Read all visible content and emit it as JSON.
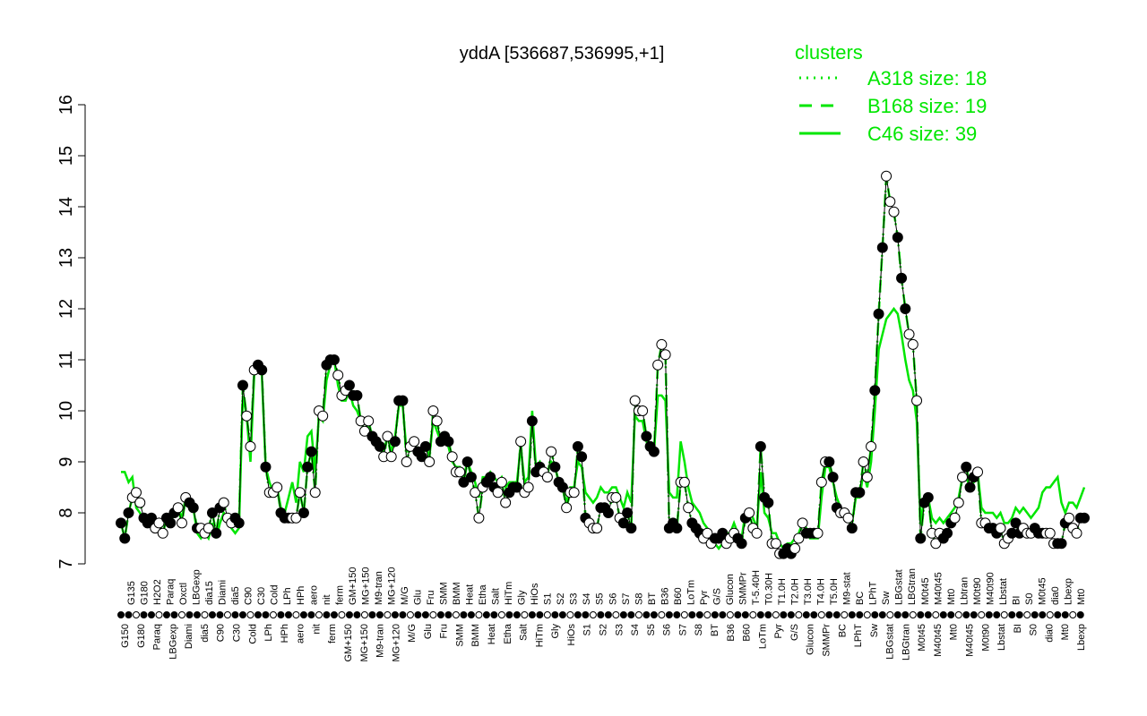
{
  "chart_data": {
    "type": "line",
    "title": "yddA [536687,536995,+1]",
    "xlabel": "",
    "ylabel": "",
    "ylim": [
      7,
      16
    ],
    "yticks": [
      7,
      8,
      9,
      10,
      11,
      12,
      13,
      14,
      15,
      16
    ],
    "x_tick_labels_top": [
      "G135",
      "G180",
      "H2O2",
      "Paraq",
      "Oxctl",
      "LBGexp",
      "dia15",
      "Diami",
      "dia5",
      "C90",
      "C30",
      "Cold",
      "LPh",
      "HPh",
      "aero",
      "nit",
      "ferm",
      "GM+150",
      "MG+150",
      "M9-tran",
      "MG+120",
      "M/G",
      "Glu",
      "Fru",
      "SMM",
      "BMM",
      "Heat",
      "Etha",
      "Salt",
      "HiTm",
      "Gly",
      "HiOs",
      "S1",
      "S2",
      "S3",
      "S4",
      "S5",
      "S6",
      "S7",
      "S8",
      "BT",
      "B36",
      "B60",
      "LoTm",
      "Pyr",
      "G/S",
      "Glucon",
      "SMMPr",
      "T-5.40H",
      "T0.30H",
      "T1.0H",
      "T2.0H",
      "T3.0H",
      "T4.0H",
      "T5.0H",
      "M9-stat",
      "BC",
      "LPhT",
      "Sw",
      "LBGstat",
      "LBGtran",
      "M0t45",
      "M40t45",
      "Mt0",
      "Lbtran",
      "M0t90",
      "M40t90",
      "Lbstat",
      "BI",
      "S0",
      "M0t45",
      "dia0",
      "Lbexp",
      "Mt0"
    ],
    "x_tick_labels_bottom": [
      "G150",
      "G180",
      "Paraq",
      "LBGexp",
      "Diami",
      "dia5",
      "C90",
      "C30",
      "Cold",
      "LPh",
      "HPh",
      "aero",
      "nit",
      "ferm",
      "GM+150",
      "MG+150",
      "M9-tran",
      "MG+120",
      "M/G",
      "Glu",
      "Fru",
      "SMM",
      "BMM",
      "Heat",
      "Etha",
      "Salt",
      "HiTm",
      "Gly",
      "HiOs",
      "S1",
      "S2",
      "S3",
      "S4",
      "S5",
      "S6",
      "S7",
      "S8",
      "BT",
      "B36",
      "B60",
      "LoTm",
      "Pyr",
      "G/S",
      "Glucon",
      "SMMPr",
      "BC",
      "LPhT",
      "Sw",
      "LBGstat",
      "LBGtran",
      "M0t45",
      "M40t45",
      "Mt0",
      "M40t45",
      "M0t90",
      "Lbstat",
      "BI",
      "S0",
      "dia0",
      "Mt0",
      "Lbexp"
    ],
    "series": [
      {
        "name": "A318 size: 18",
        "style": "dotted",
        "color": "#00e600",
        "values": [
          7.8,
          7.5,
          8.0,
          8.3,
          8.4,
          8.2,
          7.9,
          7.8,
          7.9,
          7.7,
          7.8,
          7.6,
          7.9,
          7.8,
          8.0,
          8.1,
          7.8,
          8.3,
          8.2,
          8.1,
          7.7,
          7.7,
          7.6,
          7.7,
          8.0,
          7.6,
          8.1,
          8.2,
          7.9,
          7.8,
          7.9,
          7.8,
          10.5,
          9.9,
          9.3,
          10.8,
          10.9,
          10.8,
          8.9,
          8.4,
          8.4,
          8.5,
          8.0,
          7.9,
          7.9,
          7.9,
          7.9,
          8.4,
          8.0,
          8.9,
          9.2,
          8.4,
          10.0,
          9.9,
          10.9,
          11.0,
          11.0,
          10.7,
          10.3,
          10.4,
          10.5,
          10.3,
          10.3,
          9.8,
          9.6,
          9.8,
          9.5,
          9.4,
          9.3,
          9.1,
          9.5,
          9.1,
          9.4,
          10.2,
          10.2,
          9.0,
          9.3,
          9.4,
          9.2,
          9.1,
          9.3,
          9.0,
          10.0,
          9.8,
          9.4,
          9.5,
          9.4,
          9.1,
          8.8,
          8.8,
          8.6,
          9.0,
          8.7,
          8.4,
          7.9,
          8.5,
          8.6,
          8.7,
          8.5,
          8.4,
          8.6,
          8.2,
          8.4,
          8.5,
          8.5,
          9.4,
          8.4,
          8.5,
          9.8,
          8.8,
          8.9,
          8.8,
          8.7,
          9.2,
          8.9,
          8.6,
          8.5,
          8.1,
          8.4,
          8.4,
          9.3,
          9.1,
          7.9,
          7.8,
          7.7,
          7.7,
          8.1,
          8.1,
          8.0,
          8.3,
          8.3,
          7.9,
          7.8,
          8.0,
          7.7,
          10.2,
          10.0,
          10.0,
          9.5,
          9.3,
          9.2,
          10.9,
          11.3,
          11.1,
          7.7,
          7.8,
          7.7,
          8.6,
          8.6,
          8.1,
          7.8,
          7.7,
          7.6,
          7.5,
          7.6,
          7.4,
          7.5,
          7.5,
          7.6,
          7.4,
          7.5,
          7.6,
          7.5,
          7.4,
          7.9,
          8.0,
          7.7,
          7.6,
          9.3,
          8.3,
          8.2,
          7.4,
          7.4,
          7.2,
          7.2,
          7.3,
          7.2,
          7.3,
          7.5,
          7.8,
          7.6,
          7.6,
          7.6,
          7.6,
          8.6,
          9.0,
          9.0,
          8.7,
          8.1,
          8.0,
          8.0,
          7.9,
          7.7,
          8.4,
          8.4,
          9.0,
          8.7,
          9.3,
          10.4,
          11.9,
          13.2,
          14.6,
          14.1,
          13.9,
          13.4,
          12.6,
          12.0,
          11.5,
          11.3,
          10.2,
          7.5,
          8.2,
          8.3,
          7.6,
          7.4,
          7.6,
          7.5,
          7.6,
          7.8,
          7.9,
          8.2,
          8.7,
          8.9,
          8.5,
          8.7,
          8.8,
          7.8,
          7.8,
          7.7,
          7.7,
          7.6,
          7.7,
          7.4,
          7.5,
          7.6,
          7.8,
          7.6,
          7.7,
          7.6,
          7.6,
          7.7,
          7.6,
          7.6,
          7.6,
          7.6,
          7.4,
          7.4,
          7.4,
          7.8,
          7.9,
          7.7,
          7.6,
          7.9,
          7.9
        ]
      },
      {
        "name": "B168 size: 19",
        "style": "dashed",
        "color": "#00e600",
        "values": [
          7.8,
          7.5,
          8.0,
          8.3,
          8.4,
          8.2,
          7.9,
          7.8,
          7.9,
          7.7,
          7.8,
          7.6,
          7.9,
          7.8,
          8.0,
          8.1,
          7.8,
          8.3,
          8.2,
          8.1,
          7.7,
          7.7,
          7.6,
          7.7,
          8.0,
          7.6,
          8.1,
          8.2,
          7.9,
          7.8,
          7.9,
          7.8,
          10.5,
          9.9,
          9.3,
          10.8,
          10.9,
          10.8,
          8.9,
          8.4,
          8.4,
          8.5,
          8.0,
          7.9,
          7.9,
          7.9,
          7.9,
          8.4,
          8.0,
          8.9,
          9.2,
          8.4,
          10.0,
          9.9,
          10.9,
          11.0,
          11.0,
          10.7,
          10.3,
          10.4,
          10.5,
          10.3,
          10.3,
          9.8,
          9.6,
          9.8,
          9.5,
          9.4,
          9.3,
          9.1,
          9.5,
          9.1,
          9.4,
          10.2,
          10.2,
          9.0,
          9.3,
          9.4,
          9.2,
          9.1,
          9.3,
          9.0,
          10.0,
          9.8,
          9.4,
          9.5,
          9.4,
          9.1,
          8.8,
          8.8,
          8.6,
          9.0,
          8.7,
          8.4,
          7.9,
          8.5,
          8.6,
          8.7,
          8.5,
          8.4,
          8.6,
          8.2,
          8.4,
          8.5,
          8.5,
          9.4,
          8.4,
          8.5,
          9.8,
          8.8,
          8.9,
          8.8,
          8.7,
          9.2,
          8.9,
          8.6,
          8.5,
          8.1,
          8.4,
          8.4,
          9.3,
          9.1,
          7.9,
          7.8,
          7.7,
          7.7,
          8.1,
          8.1,
          8.0,
          8.3,
          8.3,
          7.9,
          7.8,
          8.0,
          7.7,
          10.2,
          10.0,
          10.0,
          9.5,
          9.3,
          9.2,
          10.9,
          11.3,
          11.1,
          7.7,
          7.8,
          7.7,
          8.6,
          8.6,
          8.1,
          7.8,
          7.7,
          7.6,
          7.5,
          7.6,
          7.4,
          7.5,
          7.5,
          7.6,
          7.4,
          7.5,
          7.6,
          7.5,
          7.4,
          7.9,
          8.0,
          7.7,
          7.6,
          9.3,
          8.3,
          8.2,
          7.4,
          7.4,
          7.2,
          7.2,
          7.3,
          7.2,
          7.3,
          7.5,
          7.8,
          7.6,
          7.6,
          7.6,
          7.6,
          8.6,
          9.0,
          9.0,
          8.7,
          8.1,
          8.0,
          8.0,
          7.9,
          7.7,
          8.4,
          8.4,
          9.0,
          8.7,
          9.3,
          10.4,
          11.9,
          13.2,
          14.6,
          14.1,
          13.9,
          13.4,
          12.6,
          12.0,
          11.5,
          11.3,
          10.2,
          7.5,
          8.2,
          8.3,
          7.6,
          7.4,
          7.6,
          7.5,
          7.6,
          7.8,
          7.9,
          8.2,
          8.7,
          8.9,
          8.5,
          8.7,
          8.8,
          7.8,
          7.8,
          7.7,
          7.7,
          7.6,
          7.7,
          7.4,
          7.5,
          7.6,
          7.8,
          7.6,
          7.7,
          7.6,
          7.6,
          7.7,
          7.6,
          7.6,
          7.6,
          7.6,
          7.4,
          7.4,
          7.4,
          7.8,
          7.9,
          7.7,
          7.6,
          7.9,
          7.9
        ]
      },
      {
        "name": "C46 size: 39",
        "style": "solid",
        "color": "#00e600",
        "values": [
          8.8,
          8.8,
          8.6,
          8.7,
          8.1,
          8.0,
          7.8,
          7.8,
          7.9,
          7.7,
          7.8,
          7.6,
          7.9,
          8.0,
          8.0,
          8.1,
          7.9,
          8.3,
          8.2,
          8.1,
          7.6,
          7.5,
          7.6,
          7.5,
          7.8,
          7.5,
          7.8,
          8.0,
          7.9,
          7.7,
          7.6,
          7.7,
          10.3,
          9.9,
          9.0,
          10.7,
          10.8,
          10.7,
          8.9,
          8.6,
          8.4,
          8.5,
          8.1,
          8.0,
          8.3,
          8.6,
          8.2,
          9.0,
          8.8,
          9.5,
          9.6,
          8.8,
          9.9,
          9.8,
          10.6,
          10.9,
          11.0,
          10.5,
          10.2,
          10.2,
          10.4,
          10.1,
          10.0,
          9.8,
          9.6,
          9.7,
          9.5,
          9.4,
          9.3,
          9.2,
          9.5,
          9.2,
          9.5,
          10.1,
          10.1,
          9.2,
          9.3,
          9.3,
          9.2,
          9.1,
          9.3,
          9.1,
          9.8,
          9.6,
          9.4,
          9.4,
          9.3,
          9.0,
          8.9,
          8.9,
          8.7,
          9.0,
          8.8,
          8.6,
          8.3,
          8.7,
          8.7,
          8.8,
          8.7,
          8.6,
          8.7,
          8.5,
          8.6,
          8.6,
          8.6,
          9.3,
          8.6,
          8.7,
          10.0,
          8.9,
          9.0,
          8.8,
          8.8,
          9.0,
          8.9,
          8.6,
          8.5,
          8.2,
          8.5,
          8.5,
          9.0,
          8.9,
          8.4,
          8.3,
          8.2,
          8.3,
          8.5,
          8.4,
          8.4,
          8.5,
          8.5,
          8.3,
          8.1,
          8.4,
          8.2,
          9.9,
          9.8,
          9.8,
          9.4,
          9.2,
          9.2,
          10.3,
          10.3,
          10.2,
          8.4,
          8.3,
          8.3,
          9.4,
          9.0,
          8.5,
          8.2,
          8.1,
          8.0,
          7.8,
          7.7,
          7.6,
          7.4,
          7.3,
          7.4,
          7.6,
          7.6,
          7.8,
          7.6,
          7.5,
          8.0,
          8.0,
          7.9,
          7.7,
          8.8,
          8.0,
          7.9,
          7.6,
          7.6,
          7.4,
          7.3,
          7.4,
          7.4,
          7.5,
          7.6,
          7.8,
          7.7,
          7.5,
          7.5,
          7.5,
          8.3,
          8.9,
          8.9,
          8.6,
          8.3,
          8.1,
          8.0,
          7.9,
          7.8,
          8.3,
          8.3,
          8.8,
          8.5,
          9.0,
          10.0,
          11.2,
          11.5,
          11.8,
          11.9,
          12.0,
          11.9,
          11.5,
          11.0,
          10.6,
          10.4,
          9.8,
          7.8,
          8.3,
          8.3,
          7.9,
          7.8,
          7.9,
          7.8,
          7.9,
          8.0,
          8.1,
          8.3,
          8.7,
          8.7,
          8.5,
          8.6,
          8.8,
          8.1,
          8.0,
          8.0,
          8.0,
          7.9,
          8.0,
          7.8,
          7.8,
          7.9,
          8.1,
          8.0,
          8.1,
          8.0,
          7.9,
          8.0,
          8.1,
          8.4,
          8.5,
          8.5,
          8.6,
          8.7,
          8.2,
          8.0,
          8.2,
          8.2,
          8.1,
          8.3,
          8.5
        ]
      }
    ],
    "legend": {
      "title": "clusters",
      "placement": "top-right",
      "entries": [
        "A318 size: 18",
        "B168 size: 19",
        "C46 size: 39"
      ]
    },
    "grid": false
  }
}
